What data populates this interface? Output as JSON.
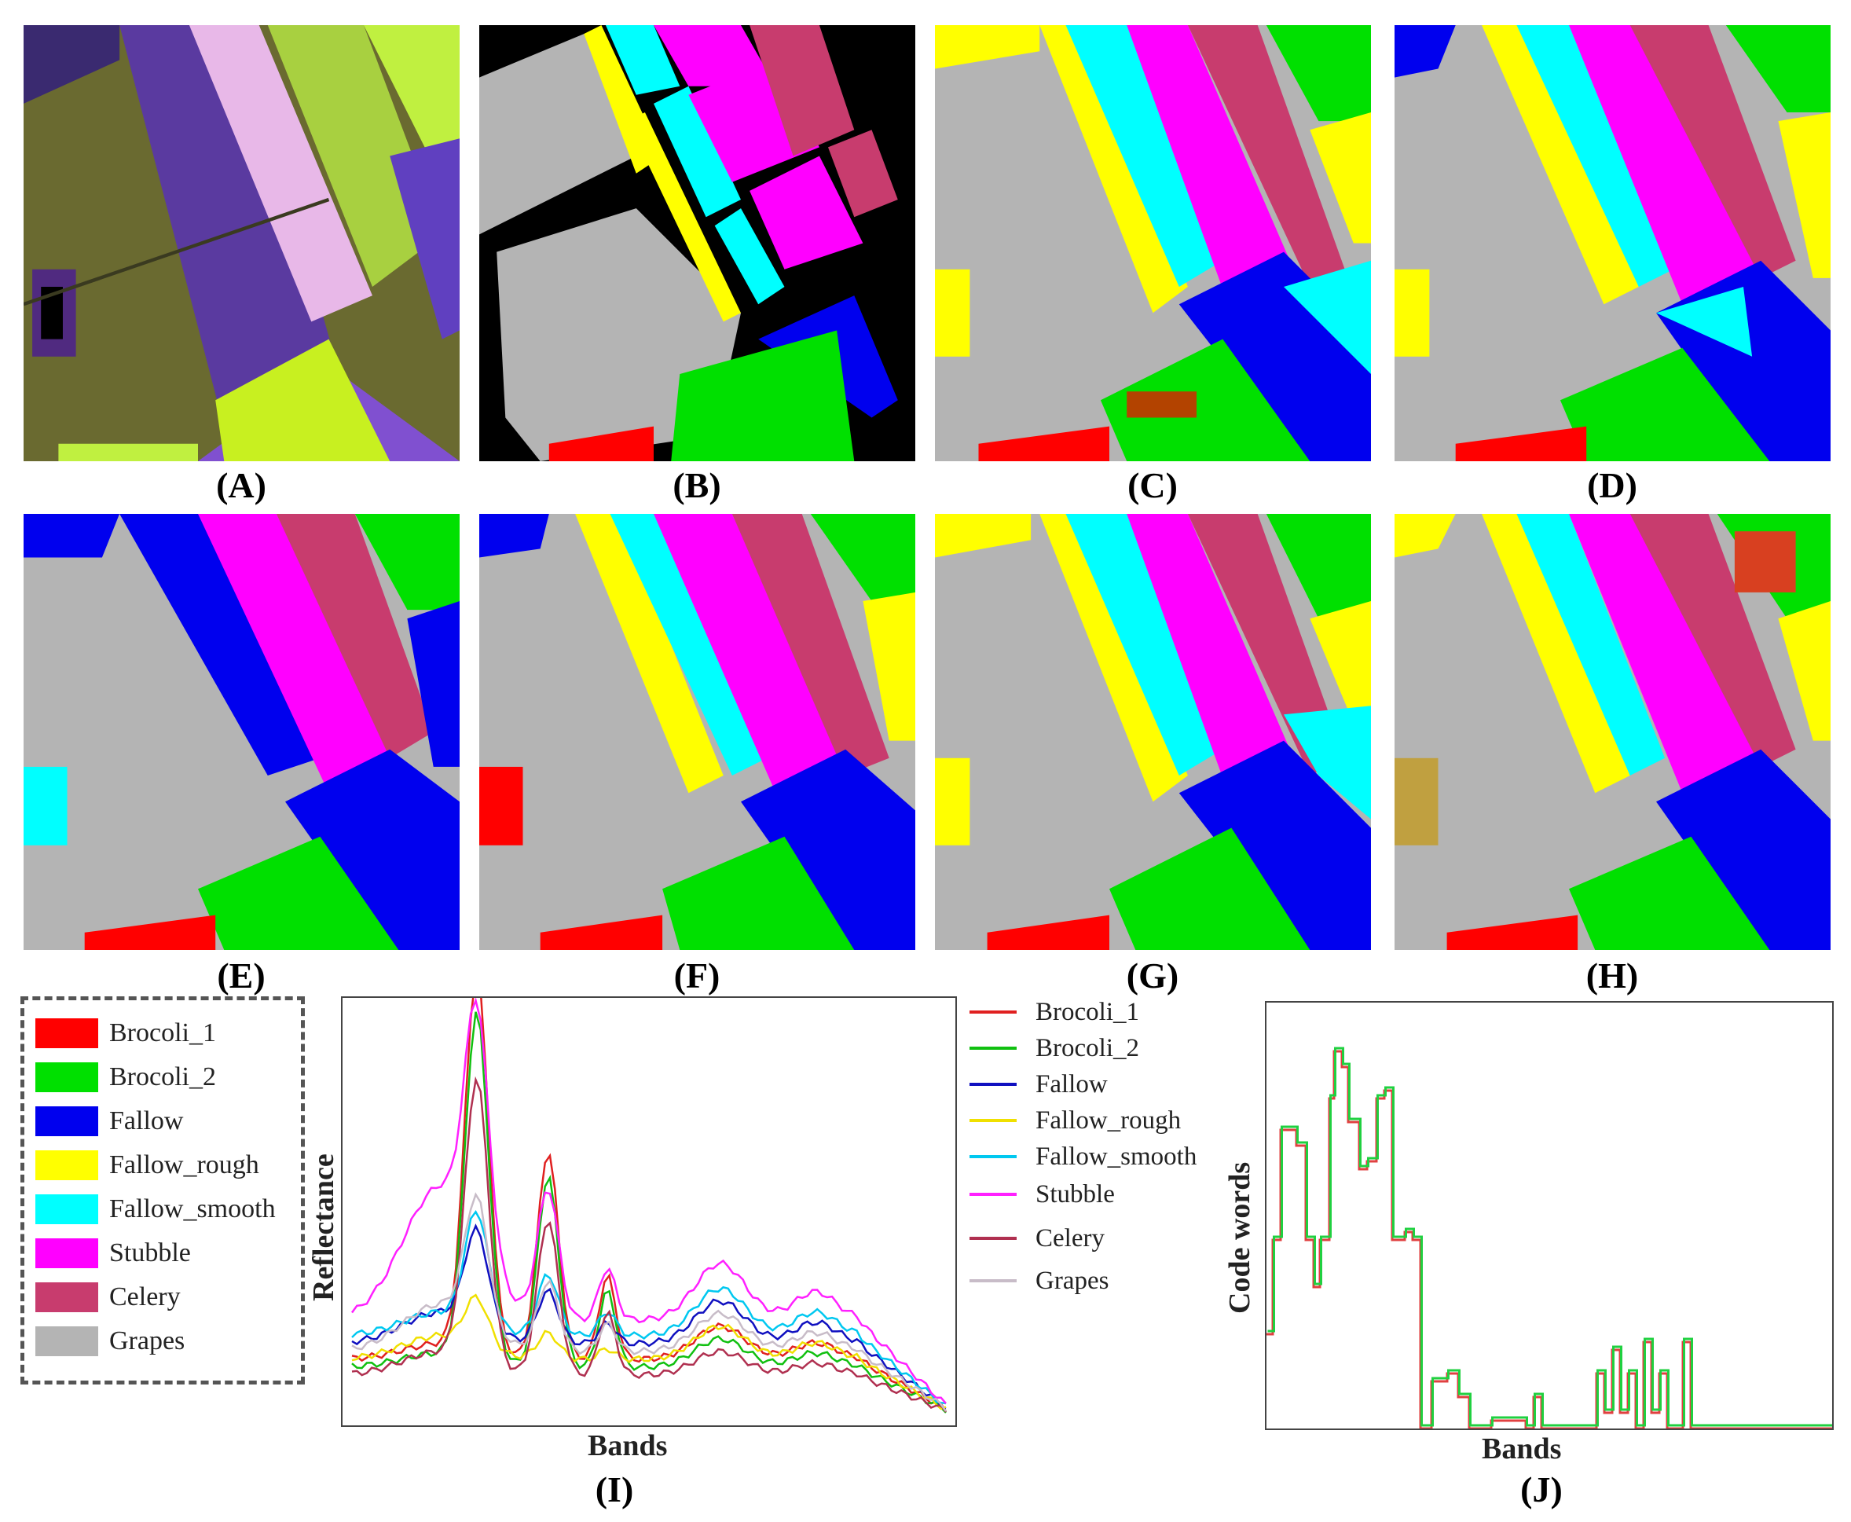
{
  "panel_labels": [
    "(A)",
    "(B)",
    "(C)",
    "(D)",
    "(E)",
    "(F)",
    "(G)",
    "(H)",
    "(I)",
    "(J)"
  ],
  "classes": [
    {
      "name": "Brocoli_1",
      "color": "#ff0000"
    },
    {
      "name": "Brocoli_2",
      "color": "#00e000"
    },
    {
      "name": "Fallow",
      "color": "#0000ee"
    },
    {
      "name": "Fallow_rough",
      "color": "#ffff00"
    },
    {
      "name": "Fallow_smooth",
      "color": "#00ffff"
    },
    {
      "name": "Stubble",
      "color": "#ff00ff"
    },
    {
      "name": "Celery",
      "color": "#c83c6e"
    },
    {
      "name": "Grapes",
      "color": "#b4b4b4"
    }
  ],
  "chart_data": [
    {
      "type": "line",
      "panel": "(I)",
      "xlabel": "Bands",
      "ylabel": "Reflectance",
      "legend_position": "right",
      "series": [
        {
          "name": "Brocoli_1",
          "color": "#e02020"
        },
        {
          "name": "Brocoli_2",
          "color": "#10c010"
        },
        {
          "name": "Fallow",
          "color": "#1010c0"
        },
        {
          "name": "Fallow_rough",
          "color": "#f0e000"
        },
        {
          "name": "Fallow_smooth",
          "color": "#00c8f0"
        },
        {
          "name": "Stubble",
          "color": "#ff20ff"
        },
        {
          "name": "Celery",
          "color": "#b03050"
        },
        {
          "name": "Grapes",
          "color": "#c8bcc8"
        }
      ]
    },
    {
      "type": "line",
      "panel": "(J)",
      "xlabel": "Bands",
      "ylabel": "Code words",
      "series": [
        {
          "color": "#e04040"
        },
        {
          "color": "#20d040"
        }
      ]
    }
  ]
}
